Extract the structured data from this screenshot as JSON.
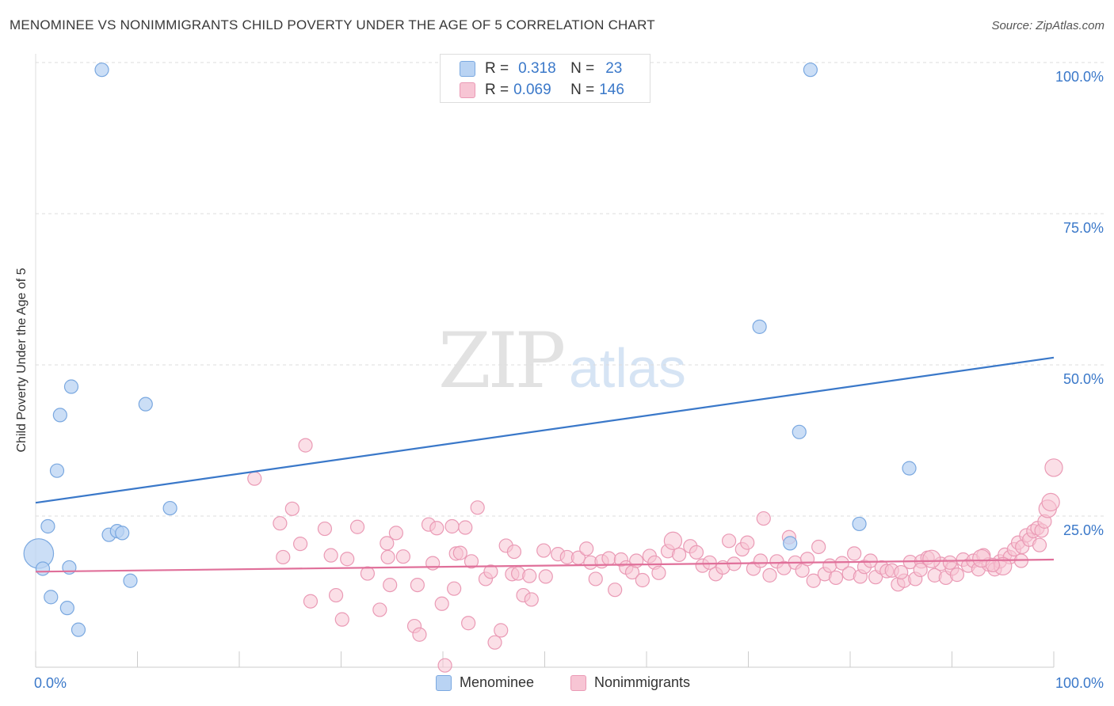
{
  "header": {
    "title": "MENOMINEE VS NONIMMIGRANTS CHILD POVERTY UNDER THE AGE OF 5 CORRELATION CHART",
    "source": "Source: ZipAtlas.com"
  },
  "watermark": {
    "zip": "ZIP",
    "atlas": "atlas"
  },
  "colors": {
    "blue": "#3a78c9",
    "blue_fill": "#b9d3f3",
    "blue_stroke": "#7aa8e0",
    "pink": "#e0709a",
    "pink_fill": "#f7c5d4",
    "pink_stroke": "#ea9ab5",
    "grid": "#dddddd",
    "axis_text": "#3a78c9"
  },
  "stats_legend": {
    "rows": [
      {
        "r_label": "R =",
        "r_value": "0.318",
        "n_label": "N =",
        "n_value": "23"
      },
      {
        "r_label": "R =",
        "r_value": "0.069",
        "n_label": "N =",
        "n_value": "146"
      }
    ]
  },
  "legend": {
    "items": [
      "Menominee",
      "Nonimmigrants"
    ]
  },
  "chart_data": {
    "type": "scatter",
    "title": "MENOMINEE VS NONIMMIGRANTS CHILD POVERTY UNDER THE AGE OF 5 CORRELATION CHART",
    "xlabel": "",
    "ylabel": "Child Poverty Under the Age of 5",
    "xlim": [
      0,
      100
    ],
    "ylim": [
      0,
      100
    ],
    "x_tick_labels": [
      "0.0%",
      "100.0%"
    ],
    "y_tick_labels": [
      "25.0%",
      "50.0%",
      "75.0%",
      "100.0%"
    ],
    "y_ticks": [
      25,
      50,
      75,
      100
    ],
    "grid": true,
    "legend_position": "bottom",
    "series": [
      {
        "name": "Menominee",
        "color": "#3a78c9",
        "trend": {
          "x": [
            0,
            100
          ],
          "y": [
            27.2,
            51.2
          ]
        },
        "points": [
          {
            "x": 0.3,
            "y": 18.8,
            "s": 2.2
          },
          {
            "x": 0.7,
            "y": 16.3
          },
          {
            "x": 1.2,
            "y": 23.3
          },
          {
            "x": 1.5,
            "y": 11.6
          },
          {
            "x": 2.1,
            "y": 32.5
          },
          {
            "x": 2.4,
            "y": 41.7
          },
          {
            "x": 3.1,
            "y": 9.8
          },
          {
            "x": 3.3,
            "y": 16.5
          },
          {
            "x": 3.5,
            "y": 46.4
          },
          {
            "x": 4.2,
            "y": 6.2
          },
          {
            "x": 6.5,
            "y": 98.8
          },
          {
            "x": 7.2,
            "y": 21.9
          },
          {
            "x": 8.0,
            "y": 22.5
          },
          {
            "x": 8.5,
            "y": 22.2
          },
          {
            "x": 9.3,
            "y": 14.3
          },
          {
            "x": 10.8,
            "y": 43.5
          },
          {
            "x": 13.2,
            "y": 26.3
          },
          {
            "x": 71.1,
            "y": 56.3
          },
          {
            "x": 74.1,
            "y": 20.5
          },
          {
            "x": 75.0,
            "y": 38.9
          },
          {
            "x": 76.1,
            "y": 98.8
          },
          {
            "x": 80.9,
            "y": 23.7
          },
          {
            "x": 85.8,
            "y": 32.9
          }
        ]
      },
      {
        "name": "Nonimmigrants",
        "color": "#e0709a",
        "trend": {
          "x": [
            0,
            100
          ],
          "y": [
            15.8,
            17.8
          ]
        },
        "points": [
          {
            "x": 21.5,
            "y": 31.2
          },
          {
            "x": 24.0,
            "y": 23.8
          },
          {
            "x": 24.3,
            "y": 18.2
          },
          {
            "x": 25.2,
            "y": 26.2
          },
          {
            "x": 26.0,
            "y": 20.4
          },
          {
            "x": 26.5,
            "y": 36.7
          },
          {
            "x": 27.0,
            "y": 10.9
          },
          {
            "x": 28.4,
            "y": 22.9
          },
          {
            "x": 29.0,
            "y": 18.5
          },
          {
            "x": 29.5,
            "y": 11.9
          },
          {
            "x": 30.1,
            "y": 7.9
          },
          {
            "x": 30.6,
            "y": 17.9
          },
          {
            "x": 31.6,
            "y": 23.2
          },
          {
            "x": 32.6,
            "y": 15.5
          },
          {
            "x": 33.8,
            "y": 9.5
          },
          {
            "x": 34.5,
            "y": 20.5
          },
          {
            "x": 34.6,
            "y": 18.2
          },
          {
            "x": 34.8,
            "y": 13.6
          },
          {
            "x": 35.4,
            "y": 22.2
          },
          {
            "x": 36.1,
            "y": 18.3
          },
          {
            "x": 37.2,
            "y": 6.8
          },
          {
            "x": 37.5,
            "y": 13.6
          },
          {
            "x": 37.7,
            "y": 5.4
          },
          {
            "x": 38.6,
            "y": 23.6
          },
          {
            "x": 39.0,
            "y": 17.2
          },
          {
            "x": 39.4,
            "y": 23.0
          },
          {
            "x": 39.9,
            "y": 10.5
          },
          {
            "x": 40.2,
            "y": 0.3
          },
          {
            "x": 40.9,
            "y": 23.3
          },
          {
            "x": 41.1,
            "y": 13.0
          },
          {
            "x": 41.3,
            "y": 18.8
          },
          {
            "x": 41.7,
            "y": 18.9
          },
          {
            "x": 42.2,
            "y": 23.1
          },
          {
            "x": 42.5,
            "y": 7.3
          },
          {
            "x": 42.8,
            "y": 17.5
          },
          {
            "x": 43.4,
            "y": 26.4
          },
          {
            "x": 44.2,
            "y": 14.6
          },
          {
            "x": 44.7,
            "y": 15.8
          },
          {
            "x": 45.1,
            "y": 4.1
          },
          {
            "x": 45.7,
            "y": 6.1
          },
          {
            "x": 46.2,
            "y": 20.1
          },
          {
            "x": 46.8,
            "y": 15.4
          },
          {
            "x": 47.0,
            "y": 19.1
          },
          {
            "x": 47.4,
            "y": 15.5
          },
          {
            "x": 47.9,
            "y": 11.9
          },
          {
            "x": 48.5,
            "y": 15.1
          },
          {
            "x": 48.7,
            "y": 11.2
          },
          {
            "x": 49.9,
            "y": 19.3
          },
          {
            "x": 50.1,
            "y": 15.0
          },
          {
            "x": 51.3,
            "y": 18.7
          },
          {
            "x": 52.2,
            "y": 18.2
          },
          {
            "x": 53.3,
            "y": 18.1
          },
          {
            "x": 54.1,
            "y": 19.6
          },
          {
            "x": 54.5,
            "y": 17.3
          },
          {
            "x": 55.0,
            "y": 14.6
          },
          {
            "x": 55.6,
            "y": 17.5
          },
          {
            "x": 56.3,
            "y": 18.0
          },
          {
            "x": 56.9,
            "y": 12.8
          },
          {
            "x": 57.5,
            "y": 17.8
          },
          {
            "x": 58.0,
            "y": 16.5
          },
          {
            "x": 58.6,
            "y": 15.7
          },
          {
            "x": 59.0,
            "y": 17.6
          },
          {
            "x": 59.6,
            "y": 14.4
          },
          {
            "x": 60.3,
            "y": 18.4
          },
          {
            "x": 60.8,
            "y": 17.3
          },
          {
            "x": 61.2,
            "y": 15.6
          },
          {
            "x": 62.1,
            "y": 19.2
          },
          {
            "x": 62.6,
            "y": 20.9,
            "s": 1.3
          },
          {
            "x": 63.2,
            "y": 18.6
          },
          {
            "x": 64.3,
            "y": 20.0
          },
          {
            "x": 64.9,
            "y": 19.0
          },
          {
            "x": 65.5,
            "y": 16.8
          },
          {
            "x": 66.2,
            "y": 17.3
          },
          {
            "x": 66.8,
            "y": 15.4
          },
          {
            "x": 67.5,
            "y": 16.5
          },
          {
            "x": 68.1,
            "y": 20.9
          },
          {
            "x": 68.6,
            "y": 17.1
          },
          {
            "x": 69.4,
            "y": 19.5
          },
          {
            "x": 69.9,
            "y": 20.6
          },
          {
            "x": 70.5,
            "y": 16.3
          },
          {
            "x": 71.2,
            "y": 17.6
          },
          {
            "x": 71.5,
            "y": 24.6
          },
          {
            "x": 72.1,
            "y": 15.2
          },
          {
            "x": 72.8,
            "y": 17.5
          },
          {
            "x": 73.5,
            "y": 16.4
          },
          {
            "x": 74.0,
            "y": 21.5
          },
          {
            "x": 74.6,
            "y": 17.3
          },
          {
            "x": 75.3,
            "y": 16.0
          },
          {
            "x": 75.8,
            "y": 17.9
          },
          {
            "x": 76.4,
            "y": 14.3
          },
          {
            "x": 76.9,
            "y": 19.9
          },
          {
            "x": 77.5,
            "y": 15.4
          },
          {
            "x": 78.0,
            "y": 16.8
          },
          {
            "x": 78.6,
            "y": 14.8
          },
          {
            "x": 79.2,
            "y": 17.2
          },
          {
            "x": 79.9,
            "y": 15.5
          },
          {
            "x": 80.4,
            "y": 18.8
          },
          {
            "x": 81.0,
            "y": 15.0
          },
          {
            "x": 81.4,
            "y": 16.6
          },
          {
            "x": 82.0,
            "y": 17.6
          },
          {
            "x": 82.5,
            "y": 14.9
          },
          {
            "x": 83.1,
            "y": 16.5
          },
          {
            "x": 83.6,
            "y": 15.9
          },
          {
            "x": 84.1,
            "y": 16.0
          },
          {
            "x": 84.7,
            "y": 13.7
          },
          {
            "x": 85.3,
            "y": 14.3
          },
          {
            "x": 85.9,
            "y": 17.4
          },
          {
            "x": 86.4,
            "y": 14.6
          },
          {
            "x": 87.0,
            "y": 17.5
          },
          {
            "x": 87.6,
            "y": 18.1
          },
          {
            "x": 88.3,
            "y": 15.2
          },
          {
            "x": 88.9,
            "y": 17.1
          },
          {
            "x": 89.4,
            "y": 14.8
          },
          {
            "x": 90.0,
            "y": 16.3
          },
          {
            "x": 90.5,
            "y": 15.3
          },
          {
            "x": 91.1,
            "y": 17.8
          },
          {
            "x": 91.6,
            "y": 16.8
          },
          {
            "x": 92.1,
            "y": 17.6
          },
          {
            "x": 92.6,
            "y": 16.2
          },
          {
            "x": 93.1,
            "y": 18.5
          },
          {
            "x": 93.6,
            "y": 17.0
          },
          {
            "x": 94.2,
            "y": 16.2
          },
          {
            "x": 94.7,
            "y": 17.5
          },
          {
            "x": 95.2,
            "y": 18.6
          },
          {
            "x": 95.7,
            "y": 18.2
          },
          {
            "x": 96.1,
            "y": 19.5
          },
          {
            "x": 96.5,
            "y": 20.6
          },
          {
            "x": 96.9,
            "y": 19.9
          },
          {
            "x": 97.3,
            "y": 21.8
          },
          {
            "x": 97.6,
            "y": 21.1
          },
          {
            "x": 98.0,
            "y": 22.5
          },
          {
            "x": 98.4,
            "y": 23.0
          },
          {
            "x": 98.8,
            "y": 22.6
          },
          {
            "x": 99.1,
            "y": 24.1
          },
          {
            "x": 99.4,
            "y": 26.2,
            "s": 1.3
          },
          {
            "x": 99.7,
            "y": 27.3,
            "s": 1.3
          },
          {
            "x": 100.0,
            "y": 33.0,
            "s": 1.3
          },
          {
            "x": 92.9,
            "y": 18.0,
            "s": 1.3
          },
          {
            "x": 95.0,
            "y": 16.7,
            "s": 1.3
          },
          {
            "x": 88.0,
            "y": 17.9,
            "s": 1.3
          },
          {
            "x": 94.0,
            "y": 16.9
          },
          {
            "x": 96.8,
            "y": 17.6
          },
          {
            "x": 98.6,
            "y": 20.2
          },
          {
            "x": 89.8,
            "y": 17.3
          },
          {
            "x": 86.9,
            "y": 16.1
          },
          {
            "x": 85.0,
            "y": 15.7
          }
        ]
      }
    ]
  }
}
